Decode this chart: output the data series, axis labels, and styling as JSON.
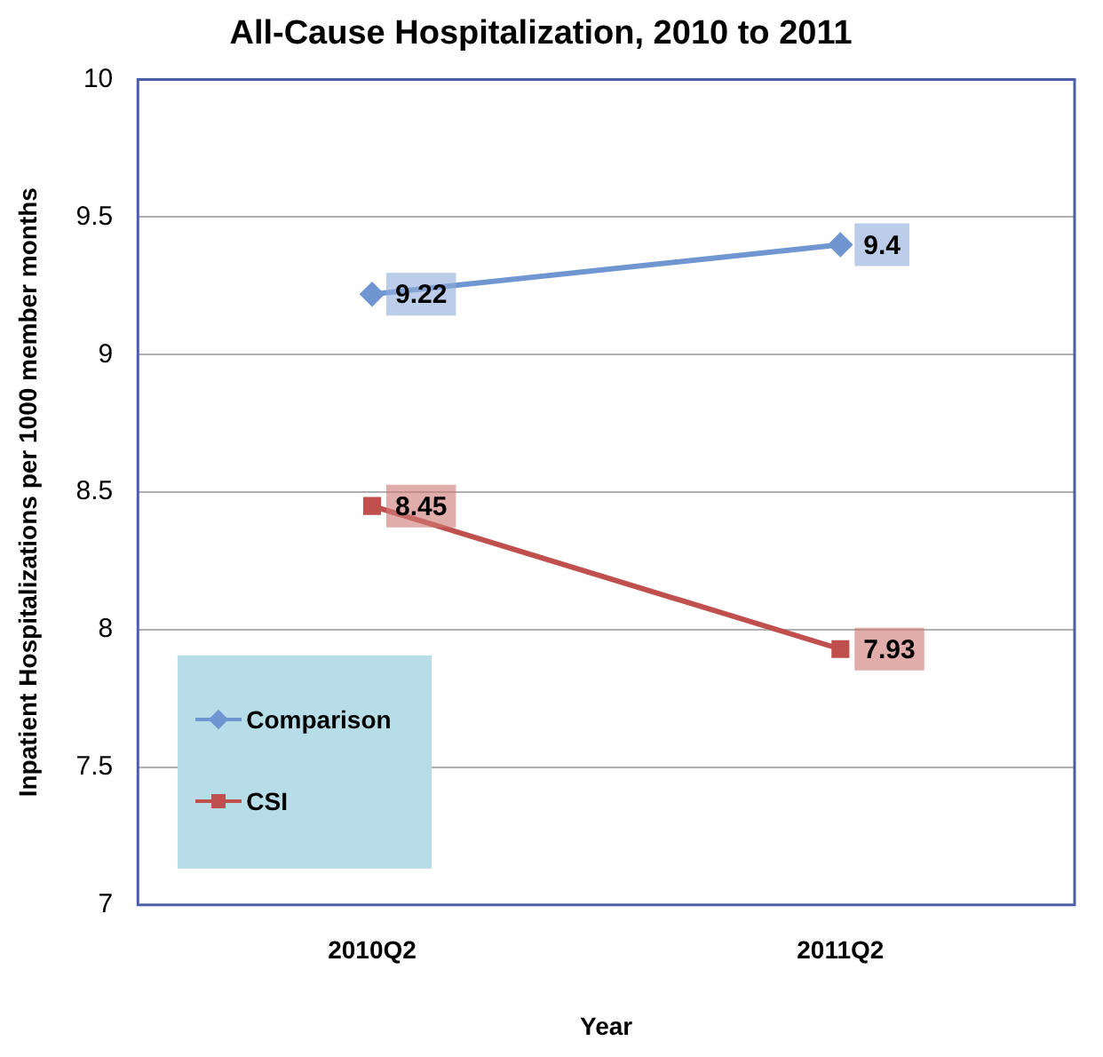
{
  "chart_data": {
    "type": "line",
    "title": "All-Cause Hospitalization, 2010 to 2011",
    "xlabel": "Year",
    "ylabel": "Inpatient Hospitalizations per 1000 member months",
    "categories": [
      "2010Q2",
      "2011Q2"
    ],
    "series": [
      {
        "name": "Comparison",
        "color": "#7096d2",
        "marker": "diamond",
        "values": [
          9.22,
          9.4
        ]
      },
      {
        "name": "CSI",
        "color": "#c0504d",
        "marker": "square",
        "values": [
          8.45,
          7.93
        ]
      }
    ],
    "ylim": [
      7,
      10
    ],
    "yticks": [
      7,
      7.5,
      8,
      8.5,
      9,
      9.5,
      10
    ],
    "grid": "y",
    "legend": "bottom left",
    "data_labels": true,
    "line_style": "solid"
  }
}
